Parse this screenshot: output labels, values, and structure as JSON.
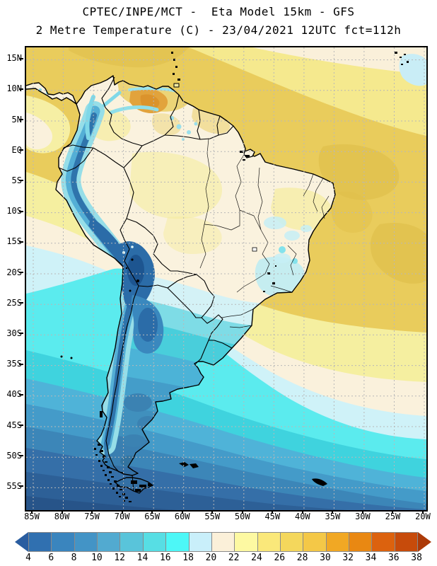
{
  "header": {
    "line1": "CPTEC/INPE/MCT -  Eta Model 15km - GFS",
    "line2": "2 Metre Temperature (C) - 23/04/2021 12UTC fct=112h"
  },
  "axes": {
    "lat": [
      "15N",
      "10N",
      "5N",
      "EQ",
      "5S",
      "10S",
      "15S",
      "20S",
      "25S",
      "30S",
      "35S",
      "40S",
      "45S",
      "50S",
      "55S"
    ],
    "lon": [
      "85W",
      "80W",
      "75W",
      "70W",
      "65W",
      "60W",
      "55W",
      "50W",
      "45W",
      "40W",
      "35W",
      "30W",
      "25W",
      "20W"
    ]
  },
  "colorbar": {
    "tick_labels": [
      "4",
      "6",
      "8",
      "10",
      "12",
      "14",
      "16",
      "18",
      "20",
      "22",
      "24",
      "26",
      "28",
      "30",
      "32",
      "34",
      "36",
      "38"
    ],
    "cell_colors": [
      "#3070B0",
      "#3A85BE",
      "#4394C6",
      "#52AAD0",
      "#59C4DA",
      "#57DEE4",
      "#4DF7F7",
      "#C9EFFA",
      "#FBF0D9",
      "#FDF9A2",
      "#FAE87A",
      "#F4D75C",
      "#F4C847",
      "#F1A824",
      "#E98812",
      "#DC620E",
      "#C74B0B"
    ],
    "below_min_color": "#2A5DA0",
    "above_max_color": "#AC3A08"
  },
  "chart_data": {
    "type": "heatmap",
    "title": "CPTEC/INPE/MCT -  Eta Model 15km - GFS",
    "subtitle": "2 Metre Temperature (C) - 23/04/2021 12UTC fct=112h",
    "variable": "2 Metre Temperature (C)",
    "model": "Eta Model 15km - GFS",
    "valid": "23/04/2021 12UTC",
    "forecast_hour": "fct=112h",
    "x_ticks": [
      "85W",
      "80W",
      "75W",
      "70W",
      "65W",
      "60W",
      "55W",
      "50W",
      "45W",
      "40W",
      "35W",
      "30W",
      "25W",
      "20W"
    ],
    "y_ticks": [
      "15N",
      "10N",
      "5N",
      "EQ",
      "5S",
      "10S",
      "15S",
      "20S",
      "25S",
      "30S",
      "35S",
      "40S",
      "45S",
      "50S",
      "55S"
    ],
    "colorbar_ticks_c": [
      4,
      6,
      8,
      10,
      12,
      14,
      16,
      18,
      20,
      22,
      24,
      26,
      28,
      30,
      32,
      34,
      36,
      38
    ],
    "legend_position": "bottom",
    "grid": true,
    "region": "South America and adjacent oceans"
  }
}
